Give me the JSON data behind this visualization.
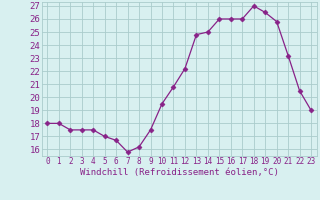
{
  "x": [
    0,
    1,
    2,
    3,
    4,
    5,
    6,
    7,
    8,
    9,
    10,
    11,
    12,
    13,
    14,
    15,
    16,
    17,
    18,
    19,
    20,
    21,
    22,
    23
  ],
  "y": [
    18.0,
    18.0,
    17.5,
    17.5,
    17.5,
    17.0,
    16.7,
    15.8,
    16.2,
    17.5,
    19.5,
    20.8,
    22.2,
    24.8,
    25.0,
    26.0,
    26.0,
    26.0,
    27.0,
    26.5,
    25.8,
    23.2,
    20.5,
    19.0
  ],
  "xlabel": "Windchill (Refroidissement éolien,°C)",
  "ylim_min": 15.5,
  "ylim_max": 27.3,
  "yticks": [
    16,
    17,
    18,
    19,
    20,
    21,
    22,
    23,
    24,
    25,
    26,
    27
  ],
  "xticks": [
    0,
    1,
    2,
    3,
    4,
    5,
    6,
    7,
    8,
    9,
    10,
    11,
    12,
    13,
    14,
    15,
    16,
    17,
    18,
    19,
    20,
    21,
    22,
    23
  ],
  "line_color": "#882288",
  "marker": "D",
  "marker_size": 2.5,
  "bg_color": "#d8f0f0",
  "grid_color": "#aacccc",
  "font_color": "#882288",
  "xlabel_fontsize": 6.5,
  "ytick_fontsize": 6.5,
  "xtick_fontsize": 5.5
}
